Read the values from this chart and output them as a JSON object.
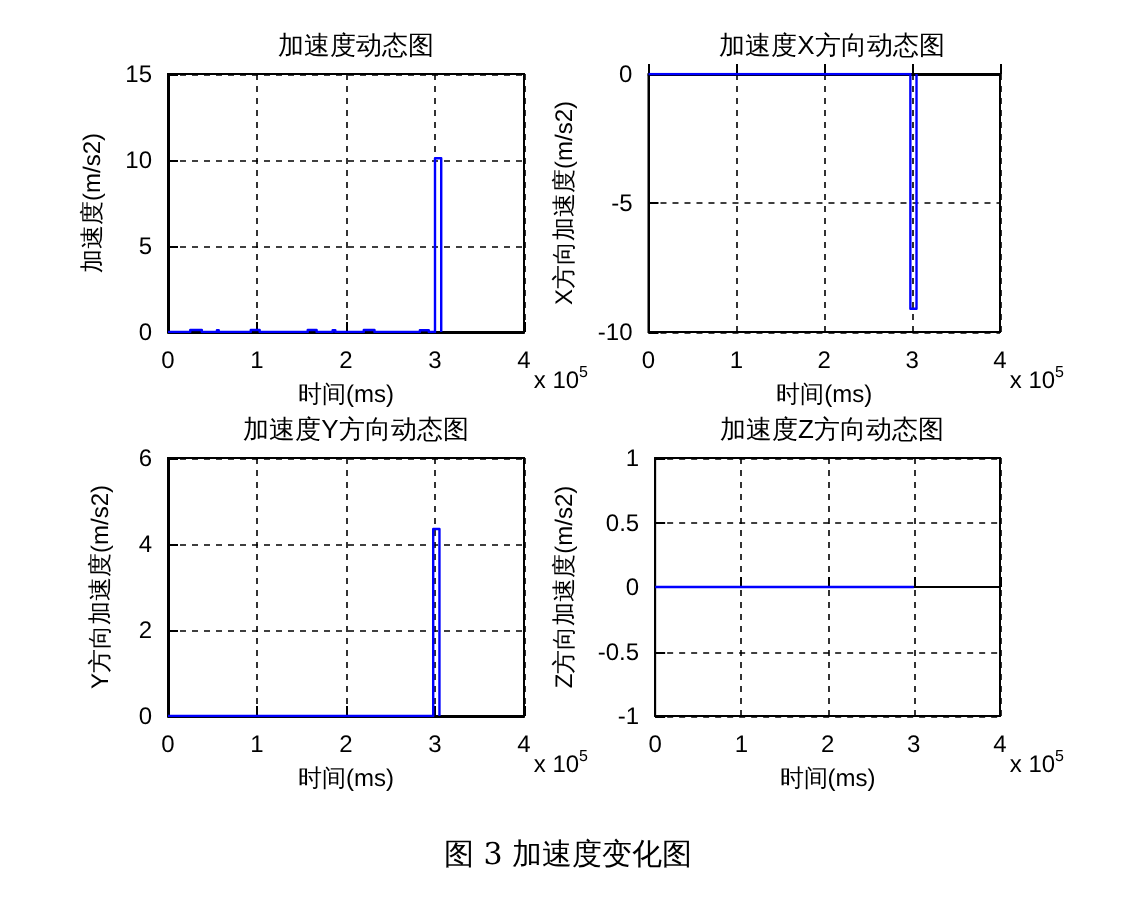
{
  "chart_data": [
    {
      "type": "line",
      "title": "加速度动态图",
      "xlabel": "时间(ms)",
      "ylabel": "加速度(m/s2)",
      "xlim": [
        0,
        4
      ],
      "xticks": [
        0,
        1,
        2,
        3,
        4
      ],
      "ylim": [
        0,
        15
      ],
      "yticks": [
        0,
        5,
        10,
        15
      ],
      "grid": true,
      "annotations": [
        "x 10$^{5}$"
      ],
      "series": [
        {
          "color": "#0000ff",
          "x": [
            0,
            0.25,
            0.25,
            0.38,
            0.38,
            0.55,
            0.55,
            0.57,
            0.57,
            0.93,
            0.93,
            1.03,
            1.03,
            1.57,
            1.57,
            1.67,
            1.67,
            1.85,
            1.85,
            1.88,
            1.88,
            2.2,
            2.2,
            2.32,
            2.32,
            2.83,
            2.83,
            2.93,
            2.93,
            3.0,
            3.0,
            3.07,
            3.07
          ],
          "values": [
            0,
            0,
            0.12,
            0.12,
            0,
            0,
            0.1,
            0.1,
            0,
            0,
            0.12,
            0.12,
            0,
            0,
            0.12,
            0.12,
            0,
            0,
            0.1,
            0.1,
            0,
            0,
            0.12,
            0.12,
            0,
            0,
            0.1,
            0.1,
            0,
            0,
            10.1,
            10.1,
            0
          ]
        }
      ]
    },
    {
      "type": "line",
      "title": "加速度X方向动态图",
      "xlabel": "时间(ms)",
      "ylabel": "X方向加速度(m/s2)",
      "xlim": [
        0,
        4
      ],
      "xticks": [
        0,
        1,
        2,
        3,
        4
      ],
      "ylim": [
        -10,
        0
      ],
      "yticks": [
        -10,
        -5,
        0
      ],
      "grid": true,
      "annotations": [
        "x 10$^{5}$"
      ],
      "series": [
        {
          "color": "#0000ff",
          "x": [
            0,
            2.98,
            2.98,
            3.05,
            3.05
          ],
          "values": [
            0,
            0,
            -9.1,
            -9.1,
            0
          ]
        }
      ]
    },
    {
      "type": "line",
      "title": "加速度Y方向动态图",
      "xlabel": "时间(ms)",
      "ylabel": "Y方向加速度(m/s2)",
      "xlim": [
        0,
        4
      ],
      "xticks": [
        0,
        1,
        2,
        3,
        4
      ],
      "ylim": [
        0,
        6
      ],
      "yticks": [
        0,
        2,
        4,
        6
      ],
      "grid": true,
      "annotations": [
        "x 10$^{5}$"
      ],
      "series": [
        {
          "color": "#0000ff",
          "x": [
            0,
            2.98,
            2.98,
            3.05,
            3.05
          ],
          "values": [
            0,
            0,
            4.35,
            4.35,
            0
          ]
        }
      ]
    },
    {
      "type": "line",
      "title": "加速度Z方向动态图",
      "xlabel": "时间(ms)",
      "ylabel": "Z方向加速度(m/s2)",
      "xlim": [
        0,
        4
      ],
      "xticks": [
        0,
        1,
        2,
        3,
        4
      ],
      "ylim": [
        -1,
        1
      ],
      "yticks": [
        -1,
        -0.5,
        0,
        0.5,
        1
      ],
      "grid": true,
      "annotations": [
        "x 10$^{5}$"
      ],
      "series": [
        {
          "color": "#0000ff",
          "x": [
            0,
            3.0
          ],
          "values": [
            0,
            0
          ]
        }
      ]
    },
    {
      "type": "other",
      "title": "图 3 加速度变化图"
    }
  ]
}
